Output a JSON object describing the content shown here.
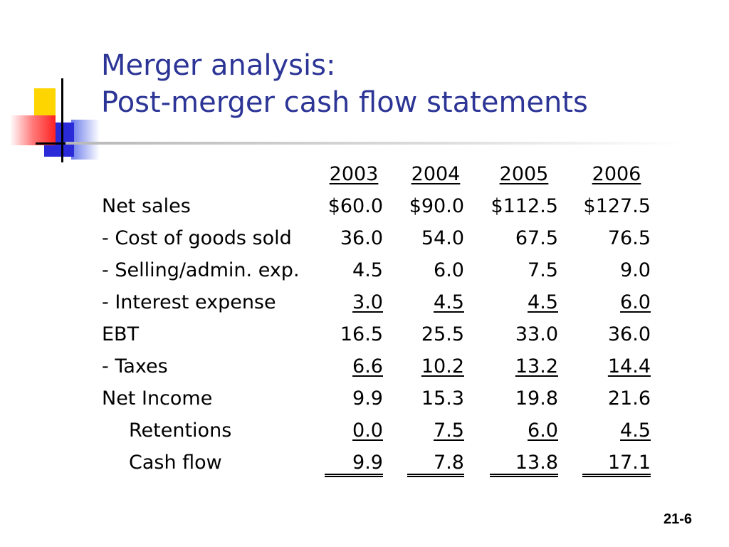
{
  "title": {
    "line1": "Merger analysis:",
    "line2": "Post-merger cash flow statements"
  },
  "table": {
    "years": [
      "2003",
      "2004",
      "2005",
      "2006"
    ],
    "rows": [
      {
        "label": "Net sales",
        "values": [
          "$60.0",
          "$90.0",
          "$112.5",
          "$127.5"
        ]
      },
      {
        "label": "- Cost of goods sold",
        "values": [
          "36.0",
          "54.0",
          "67.5",
          "76.5"
        ]
      },
      {
        "label": "- Selling/admin. exp.",
        "values": [
          "4.5",
          "6.0",
          "7.5",
          "9.0"
        ]
      },
      {
        "label": "- Interest expense",
        "values": [
          "3.0",
          "4.5",
          "4.5",
          "6.0"
        ]
      },
      {
        "label": "EBT",
        "values": [
          "16.5",
          "25.5",
          "33.0",
          "36.0"
        ]
      },
      {
        "label": "- Taxes",
        "values": [
          "6.6",
          "10.2",
          "13.2",
          "14.4"
        ]
      },
      {
        "label": "Net Income",
        "values": [
          "9.9",
          "15.3",
          "19.8",
          "21.6"
        ]
      },
      {
        "label": "Retentions",
        "values": [
          "0.0",
          "7.5",
          "6.0",
          "4.5"
        ]
      },
      {
        "label": "Cash flow",
        "values": [
          "9.9",
          "7.8",
          "13.8",
          "17.1"
        ]
      }
    ]
  },
  "slide_number": "21-6",
  "colors": {
    "title": "#2c3596",
    "logo_yellow": "#ffd500",
    "logo_blue": "#2a2ad8",
    "logo_red": "#ff2222"
  }
}
